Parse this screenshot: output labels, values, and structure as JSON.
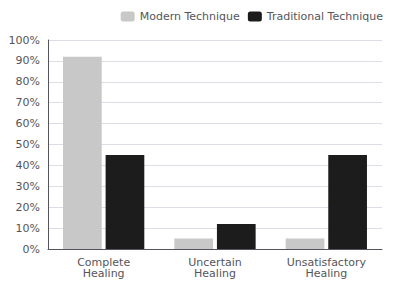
{
  "chart_data": {
    "type": "bar",
    "categories": [
      "Complete\nHealing",
      "Uncertain\nHealing",
      "Unsatisfactory\nHealing"
    ],
    "series": [
      {
        "name": "Modern Technique",
        "color": "#c8c8c8",
        "values": [
          92,
          5,
          5
        ]
      },
      {
        "name": "Traditional Technique",
        "color": "#1c1c1c",
        "values": [
          45,
          12,
          45
        ]
      }
    ],
    "ylim": [
      0,
      100
    ],
    "yticks": [
      {
        "value": 0,
        "label": "0%"
      },
      {
        "value": 10,
        "label": "10%"
      },
      {
        "value": 20,
        "label": "20%"
      },
      {
        "value": 30,
        "label": "30%"
      },
      {
        "value": 40,
        "label": "40%"
      },
      {
        "value": 50,
        "label": "50%"
      },
      {
        "value": 60,
        "label": "60%"
      },
      {
        "value": 70,
        "label": "70%"
      },
      {
        "value": 80,
        "label": "80%"
      },
      {
        "value": 90,
        "label": "90%"
      },
      {
        "value": 100,
        "label": "100%"
      }
    ],
    "grid": true,
    "legend": "upper right"
  }
}
